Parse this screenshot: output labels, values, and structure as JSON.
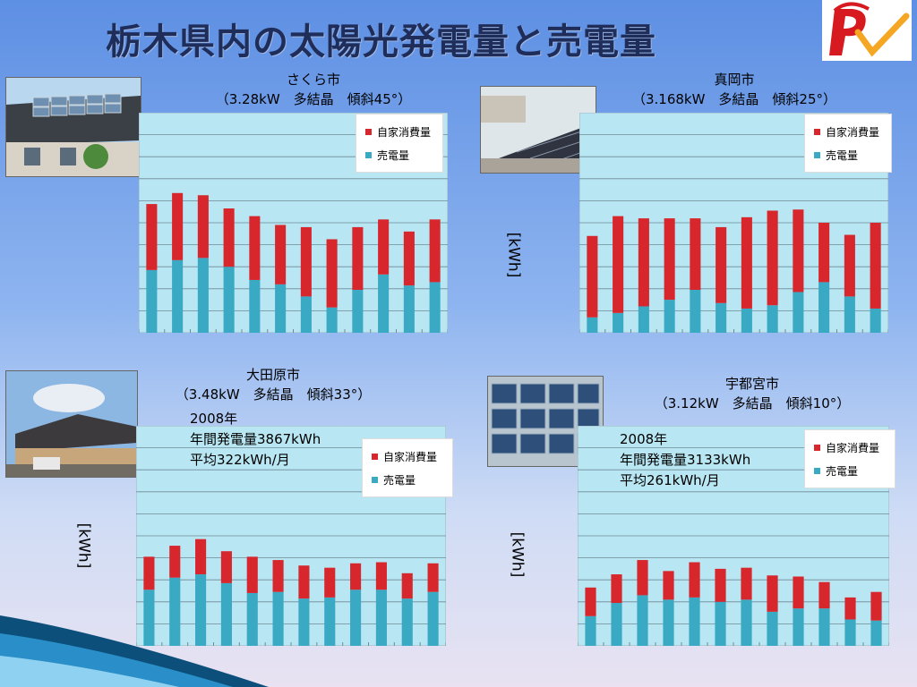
{
  "slide": {
    "title": "栃木県内の太陽光発電量と売電量"
  },
  "colors": {
    "self_use": "#d7272d",
    "sold": "#3aa9c3",
    "plot_bg": "#b8e6f2"
  },
  "chart_data": [
    {
      "type": "bar",
      "stacked": true,
      "title": "さくら市",
      "subtitle": "（3.28kW　多結晶　傾斜45°）",
      "ylabel": "",
      "categories": [
        "1",
        "2",
        "3",
        "4",
        "5",
        "6",
        "7",
        "8",
        "9",
        "10",
        "11",
        "12"
      ],
      "series": [
        {
          "name": "売電量",
          "values": [
            285,
            330,
            340,
            300,
            240,
            220,
            165,
            115,
            195,
            265,
            215,
            230
          ]
        },
        {
          "name": "自家消費量",
          "values": [
            300,
            305,
            285,
            265,
            290,
            270,
            315,
            310,
            285,
            250,
            245,
            285
          ]
        }
      ]
    },
    {
      "type": "bar",
      "stacked": true,
      "title": "真岡市",
      "subtitle": "（3.168kW　多結晶　傾斜25°）",
      "ylabel": "[kWh]",
      "categories": [
        "1",
        "2",
        "3",
        "4",
        "5",
        "6",
        "7",
        "8",
        "9",
        "10",
        "11",
        "12"
      ],
      "series": [
        {
          "name": "売電量",
          "values": [
            70,
            90,
            120,
            150,
            195,
            135,
            110,
            125,
            185,
            230,
            165,
            110
          ]
        },
        {
          "name": "自家消費量",
          "values": [
            370,
            440,
            400,
            370,
            325,
            345,
            415,
            430,
            375,
            270,
            280,
            390
          ]
        }
      ]
    },
    {
      "type": "bar",
      "stacked": true,
      "title": "大田原市",
      "subtitle": "（3.48kW　多結晶　傾斜33°）",
      "ylabel": "[kWh]",
      "note": [
        "2008年",
        "年間発電量3867kWh",
        "平均322kWh/月"
      ],
      "categories": [
        "1",
        "2",
        "3",
        "4",
        "5",
        "6",
        "7",
        "8",
        "9",
        "10",
        "11",
        "12"
      ],
      "series": [
        {
          "name": "売電量",
          "values": [
            255,
            310,
            325,
            285,
            240,
            245,
            215,
            220,
            255,
            255,
            215,
            245
          ]
        },
        {
          "name": "自家消費量",
          "values": [
            150,
            145,
            160,
            145,
            165,
            145,
            150,
            135,
            120,
            125,
            115,
            130
          ]
        }
      ]
    },
    {
      "type": "bar",
      "stacked": true,
      "title": "宇都宮市",
      "subtitle": "（3.12kW　多結晶　傾斜10°）",
      "ylabel": "[kWh]",
      "note": [
        "2008年",
        "年間発電量3133kWh",
        "平均261kWh/月"
      ],
      "categories": [
        "1",
        "2",
        "3",
        "4",
        "5",
        "6",
        "7",
        "8",
        "9",
        "10",
        "11",
        "12"
      ],
      "series": [
        {
          "name": "売電量",
          "values": [
            135,
            195,
            230,
            210,
            220,
            200,
            210,
            155,
            170,
            170,
            120,
            115
          ]
        },
        {
          "name": "自家消費量",
          "values": [
            130,
            130,
            160,
            130,
            160,
            150,
            145,
            165,
            145,
            120,
            100,
            130
          ]
        }
      ]
    }
  ]
}
